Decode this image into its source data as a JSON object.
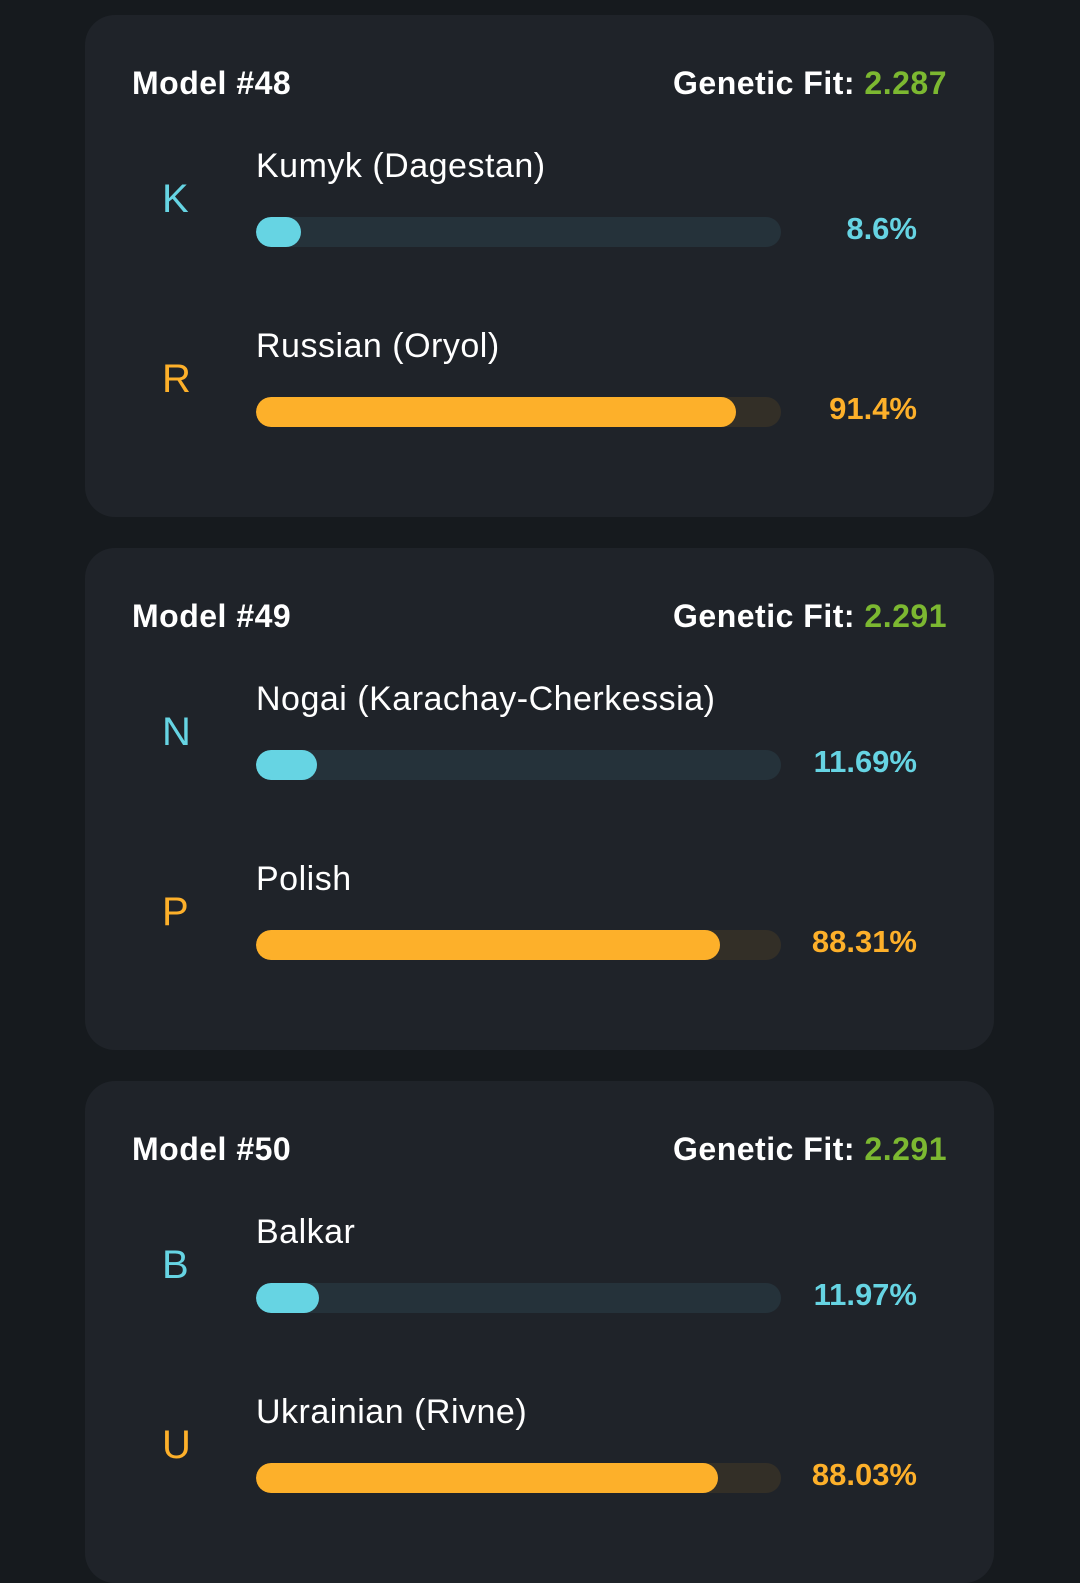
{
  "colors": {
    "cyan": "#66d4e3",
    "cyan_track": "#25323a",
    "orange": "#fdb02a",
    "orange_track": "#332f27",
    "fit": "#7cb831"
  },
  "fit_label": "Genetic Fit:",
  "models": [
    {
      "title": "Model #48",
      "fit": "2.287",
      "components": [
        {
          "letter": "K",
          "name": "Kumyk (Dagestan)",
          "percent_label": "8.6%",
          "percent": 8.6,
          "color": "cyan"
        },
        {
          "letter": "R",
          "name": "Russian (Oryol)",
          "percent_label": "91.4%",
          "percent": 91.4,
          "color": "orange"
        }
      ]
    },
    {
      "title": "Model #49",
      "fit": "2.291",
      "components": [
        {
          "letter": "N",
          "name": "Nogai (Karachay-Cherkessia)",
          "percent_label": "11.69%",
          "percent": 11.69,
          "color": "cyan"
        },
        {
          "letter": "P",
          "name": "Polish",
          "percent_label": "88.31%",
          "percent": 88.31,
          "color": "orange"
        }
      ]
    },
    {
      "title": "Model #50",
      "fit": "2.291",
      "components": [
        {
          "letter": "B",
          "name": "Balkar",
          "percent_label": "11.97%",
          "percent": 11.97,
          "color": "cyan"
        },
        {
          "letter": "U",
          "name": "Ukrainian (Rivne)",
          "percent_label": "88.03%",
          "percent": 88.03,
          "color": "orange"
        }
      ]
    }
  ]
}
